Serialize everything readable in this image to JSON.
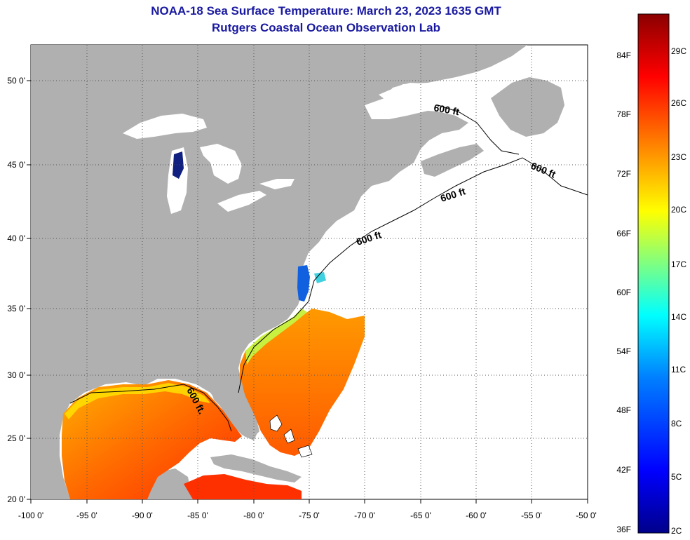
{
  "title": "NOAA-18 Sea Surface Temperature:  March 23, 2023 1635 GMT",
  "subtitle": "Rutgers Coastal Ocean Observation Lab",
  "map": {
    "lat_ticks": [
      "50 0'",
      "45 0'",
      "40 0'",
      "35 0'",
      "30 0'",
      "25 0'",
      "20 0'"
    ],
    "lon_ticks": [
      "-100 0'",
      "-95 0'",
      "-90 0'",
      "-85 0'",
      "-80 0'",
      "-75 0'",
      "-70 0'",
      "-65 0'",
      "-60 0'",
      "-55 0'",
      "-50 0'"
    ],
    "contour_labels": [
      "600 ft",
      "600 ft",
      "600 ft",
      "600 ft",
      "600 ft."
    ],
    "colors": {
      "land": "#b0b0b0",
      "no_data": "#ffffff",
      "grid": "#555555"
    }
  },
  "colorbar": {
    "fahrenheit_labels": [
      "84F",
      "78F",
      "72F",
      "66F",
      "60F",
      "54F",
      "48F",
      "42F",
      "36F"
    ],
    "celsius_labels": [
      "29C",
      "26C",
      "23C",
      "20C",
      "17C",
      "14C",
      "11C",
      "8C",
      "5C",
      "2C"
    ],
    "colors": [
      "#00008b",
      "#0000ff",
      "#0080ff",
      "#00ffff",
      "#80ff80",
      "#ffff00",
      "#ff8000",
      "#ff0000",
      "#8b0000"
    ]
  }
}
